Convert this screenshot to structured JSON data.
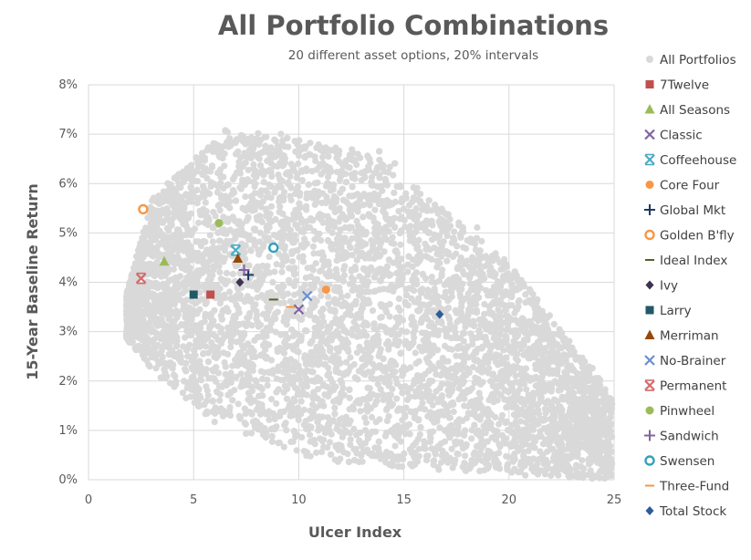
{
  "chart_data": {
    "type": "scatter",
    "title": "All Portfolio Combinations",
    "subtitle": "20 different asset options, 20% intervals",
    "xlabel": "Ulcer Index",
    "ylabel": "15-Year Baseline Return",
    "xlim": [
      0,
      25
    ],
    "ylim": [
      0,
      8
    ],
    "x_ticks": [
      "0",
      "5",
      "10",
      "15",
      "20",
      "25"
    ],
    "y_ticks": [
      "0%",
      "1%",
      "2%",
      "3%",
      "4%",
      "5%",
      "6%",
      "7%",
      "8%"
    ],
    "y_tick_values": [
      0,
      1,
      2,
      3,
      4,
      5,
      6,
      7,
      8
    ],
    "x_tick_values": [
      0,
      5,
      10,
      15,
      20,
      25
    ],
    "grid": true,
    "legend_position": "right",
    "background_series": {
      "name": "All Portfolios",
      "color": "#d9d9d9",
      "marker": "circle",
      "description_of_shape": "dense cloud spanning Ulcer Index ~1.5 to 25 and return ~0% to 7.1%"
    },
    "series": [
      {
        "name": "7Twelve",
        "x": 5.8,
        "y": 3.75,
        "color": "#c0504d",
        "marker": "square"
      },
      {
        "name": "All Seasons",
        "x": 3.6,
        "y": 4.42,
        "color": "#9bbb59",
        "marker": "triangle"
      },
      {
        "name": "Classic",
        "x": 10.0,
        "y": 3.45,
        "color": "#8064a2",
        "marker": "x"
      },
      {
        "name": "Coffeehouse",
        "x": 7.0,
        "y": 4.65,
        "color": "#4bacc6",
        "marker": "star-x"
      },
      {
        "name": "Core Four",
        "x": 11.3,
        "y": 3.85,
        "color": "#f79646",
        "marker": "circle"
      },
      {
        "name": "Global Mkt",
        "x": 7.6,
        "y": 4.15,
        "color": "#1f3864",
        "marker": "plus"
      },
      {
        "name": "Golden B'fly",
        "x": 2.6,
        "y": 5.48,
        "color": "#f79646",
        "marker": "open-circle"
      },
      {
        "name": "Ideal Index",
        "x": 8.8,
        "y": 3.65,
        "color": "#4f6228",
        "marker": "dash"
      },
      {
        "name": "Ivy",
        "x": 7.2,
        "y": 4.0,
        "color": "#403152",
        "marker": "diamond"
      },
      {
        "name": "Larry",
        "x": 5.0,
        "y": 3.75,
        "color": "#215967",
        "marker": "square"
      },
      {
        "name": "Merriman",
        "x": 7.1,
        "y": 4.48,
        "color": "#974806",
        "marker": "triangle"
      },
      {
        "name": "No-Brainer",
        "x": 10.4,
        "y": 3.72,
        "color": "#6a8fd2",
        "marker": "x"
      },
      {
        "name": "Permanent",
        "x": 2.5,
        "y": 4.08,
        "color": "#d46b6b",
        "marker": "star-x"
      },
      {
        "name": "Pinwheel",
        "x": 6.2,
        "y": 5.2,
        "color": "#9bbb59",
        "marker": "circle"
      },
      {
        "name": "Sandwich",
        "x": 7.4,
        "y": 4.25,
        "color": "#8064a2",
        "marker": "plus"
      },
      {
        "name": "Swensen",
        "x": 8.8,
        "y": 4.7,
        "color": "#31a2bd",
        "marker": "open-circle"
      },
      {
        "name": "Three-Fund",
        "x": 9.6,
        "y": 3.5,
        "color": "#f79646",
        "marker": "dash"
      },
      {
        "name": "Total Stock",
        "x": 16.7,
        "y": 3.35,
        "color": "#2e5c9a",
        "marker": "diamond"
      }
    ]
  }
}
